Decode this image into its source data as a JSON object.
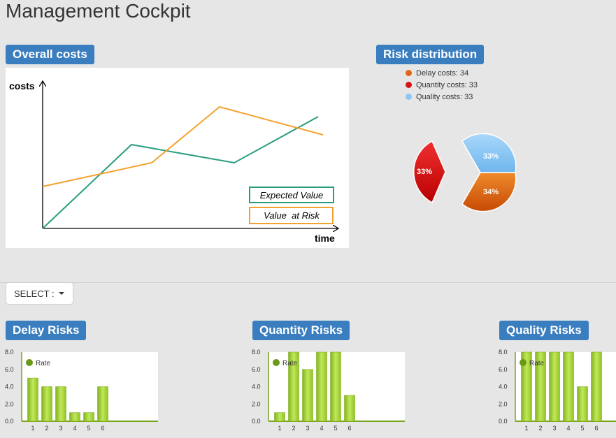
{
  "page": {
    "title": "Management Cockpit"
  },
  "overall_costs": {
    "heading": "Overall costs",
    "y_axis_label": "costs",
    "x_axis_label": "time",
    "legend": {
      "expected": "Expected Value",
      "risk": "Value  at Risk"
    },
    "colors": {
      "expected": "#2a9d7f",
      "risk": "#f3a22d"
    }
  },
  "risk_distribution": {
    "heading": "Risk distribution",
    "legend": [
      {
        "label": "Delay costs: 34",
        "color": "#e0651a"
      },
      {
        "label": "Quantity costs: 33",
        "color": "#d71414"
      },
      {
        "label": "Quality costs: 33",
        "color": "#8cc8f5"
      }
    ],
    "slice_labels": {
      "delay": "34%",
      "quantity": "33%",
      "quality": "33%"
    }
  },
  "select": {
    "label": "SELECT :"
  },
  "chart_data": [
    {
      "type": "line",
      "title": "Overall costs",
      "xlabel": "time",
      "ylabel": "costs",
      "series": [
        {
          "name": "Expected Value",
          "x": [
            0,
            1,
            2,
            3
          ],
          "values": [
            0,
            0.6,
            0.47,
            0.8
          ]
        },
        {
          "name": "Value  at Risk",
          "x": [
            0,
            1,
            2,
            3
          ],
          "values": [
            0.3,
            0.47,
            0.87,
            0.67
          ]
        }
      ]
    },
    {
      "type": "pie",
      "title": "Risk distribution",
      "categories": [
        "Delay costs",
        "Quantity costs",
        "Quality costs"
      ],
      "values": [
        34,
        33,
        33
      ],
      "labels": [
        "34%",
        "33%",
        "33%"
      ]
    },
    {
      "type": "bar",
      "title": "Delay Risks",
      "categories": [
        "1",
        "2",
        "3",
        "4",
        "5",
        "6"
      ],
      "series": [
        {
          "name": "Rate",
          "values": [
            5,
            4,
            4,
            1,
            1,
            4
          ]
        }
      ],
      "ylim": [
        0,
        8
      ],
      "yticks": [
        "8.0",
        "6.0",
        "4.0",
        "2.0",
        "0.0"
      ]
    },
    {
      "type": "bar",
      "title": "Quantity Risks",
      "categories": [
        "1",
        "2",
        "3",
        "4",
        "5",
        "6"
      ],
      "series": [
        {
          "name": "Rate",
          "values": [
            1,
            8,
            6,
            8,
            8,
            3
          ]
        }
      ],
      "ylim": [
        0,
        8
      ],
      "yticks": [
        "8.0",
        "6.0",
        "4.0",
        "2.0",
        "0.0"
      ]
    },
    {
      "type": "bar",
      "title": "Quality Risks",
      "categories": [
        "1",
        "2",
        "3",
        "4",
        "5",
        "6"
      ],
      "series": [
        {
          "name": "Rate",
          "values": [
            8,
            8,
            8,
            8,
            4,
            8
          ]
        }
      ],
      "ylim": [
        0,
        8
      ],
      "yticks": [
        "8.0",
        "6.0",
        "4.0",
        "2.0",
        "0.0"
      ]
    }
  ]
}
